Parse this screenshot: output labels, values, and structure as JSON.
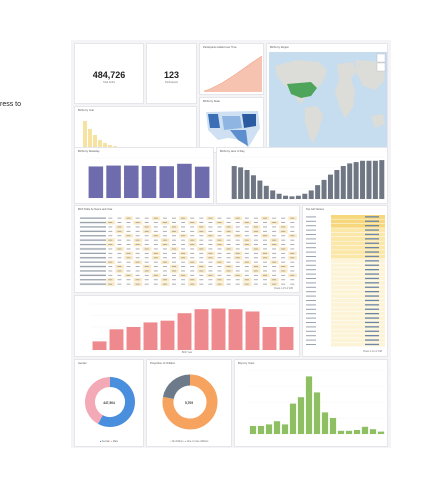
{
  "side_text": "ress to",
  "kpis": [
    {
      "value": "484,726",
      "label": "Total births"
    },
    {
      "value": "123",
      "label": "Participants"
    }
  ],
  "titles": {
    "participants_over_time": "Participants Added over Time",
    "map": "Births by Region",
    "births_by_state": "Births by State",
    "histogram": "Births by Year",
    "day_of_week": "Births by Weekday",
    "hour_of_day": "Births by Hour of Day",
    "table": "Birth Table by Name and Year",
    "pivot": "Top Girl Names",
    "gender": "Gender",
    "children": "Proportion of Children",
    "boys_years": "Boys by Years"
  },
  "donuts": {
    "gender_center": "447,904",
    "children_center": "5,709",
    "gender_legend": [
      "Female",
      "Male"
    ],
    "children_legend": [
      "No children",
      "One or more children"
    ]
  },
  "footers": {
    "table_pages": "Rows 1-15 of 226",
    "pivot_pages": "Rows 1-10 of 168",
    "big_bar_axis": "Birth Year"
  },
  "chart_data": [
    {
      "type": "bar",
      "title": "Births by Weekday",
      "categories": [
        "Sunday",
        "Monday",
        "Tuesday",
        "Wednesday",
        "Thursday",
        "Friday",
        "Saturday"
      ],
      "values": [
        71000,
        73000,
        73000,
        72000,
        71500,
        77000,
        70500
      ],
      "ylim": [
        0,
        90000
      ]
    },
    {
      "type": "bar",
      "title": "Births by Hour of Day",
      "categories": [
        "0",
        "1",
        "2",
        "3",
        "4",
        "5",
        "6",
        "7",
        "8",
        "9",
        "10",
        "11",
        "12",
        "13",
        "14",
        "15",
        "16",
        "17",
        "18",
        "19",
        "20",
        "21",
        "22",
        "23"
      ],
      "values": [
        50,
        48,
        44,
        36,
        28,
        20,
        13,
        8,
        5,
        4,
        5,
        8,
        13,
        21,
        29,
        37,
        44,
        50,
        54,
        56,
        58,
        58,
        58,
        59
      ]
    },
    {
      "type": "bar",
      "title": "Births by Year",
      "categories": [
        "1",
        "2",
        "3",
        "4",
        "5",
        "6",
        "7",
        "8",
        "9",
        "10",
        "11",
        "12"
      ],
      "values": [
        15,
        36,
        40,
        48,
        51,
        64,
        71,
        72,
        71,
        67,
        40,
        40
      ],
      "ylim": [
        0,
        80
      ]
    },
    {
      "type": "bar",
      "title": "Boys by Years",
      "categories": [
        "1",
        "2",
        "3",
        "4",
        "5",
        "6",
        "7",
        "8",
        "9",
        "10",
        "11",
        "12",
        "13",
        "14",
        "15",
        "16",
        "17"
      ],
      "values": [
        10,
        10,
        12,
        16,
        12,
        38,
        46,
        72,
        52,
        27,
        20,
        4,
        4,
        5,
        9,
        6,
        3
      ],
      "ylim": [
        0,
        80
      ]
    },
    {
      "type": "pie",
      "title": "Gender",
      "categories": [
        "Female",
        "Male"
      ],
      "values": [
        58,
        42
      ]
    },
    {
      "type": "pie",
      "title": "Proportion of Children",
      "categories": [
        "No children",
        "One or more children"
      ],
      "values": [
        78,
        22
      ]
    }
  ],
  "colors": {
    "purple": "#6e6cac",
    "slate": "#6f7785",
    "salmon": "#ee8a8d",
    "green": "#8fbf63",
    "blue": "#4a8fdd",
    "pink": "#f4a9b6",
    "orange": "#f5a35f",
    "gray": "#6c7a89",
    "peach": "#f3b49c",
    "map_land": "#dcdcd8",
    "map_sea": "#c6dcef",
    "map_us": "#4da45a"
  }
}
